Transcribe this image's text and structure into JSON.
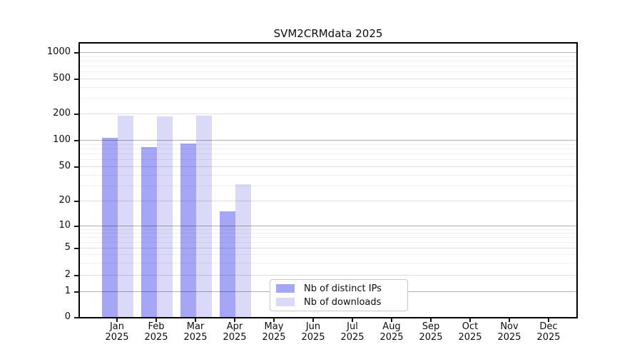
{
  "chart_data": {
    "type": "bar",
    "title": "SVM2CRMdata 2025",
    "categories": [
      "Jan",
      "Feb",
      "Mar",
      "Apr",
      "May",
      "Jun",
      "Jul",
      "Aug",
      "Sep",
      "Oct",
      "Nov",
      "Dec"
    ],
    "category_year": "2025",
    "series": [
      {
        "name": "Nb of distinct IPs",
        "color": "#a6a6f6",
        "values": [
          105,
          83,
          91,
          15,
          null,
          null,
          null,
          null,
          null,
          null,
          null,
          null
        ]
      },
      {
        "name": "Nb of downloads",
        "color": "#dadaf8",
        "values": [
          190,
          185,
          190,
          31,
          null,
          null,
          null,
          null,
          null,
          null,
          null,
          null
        ]
      }
    ],
    "yscale": "symlog",
    "yticks": [
      0,
      1,
      2,
      5,
      10,
      20,
      50,
      100,
      200,
      500,
      1000
    ],
    "ylim": [
      0,
      1300
    ],
    "grid": true,
    "legend_position": "lower center"
  }
}
